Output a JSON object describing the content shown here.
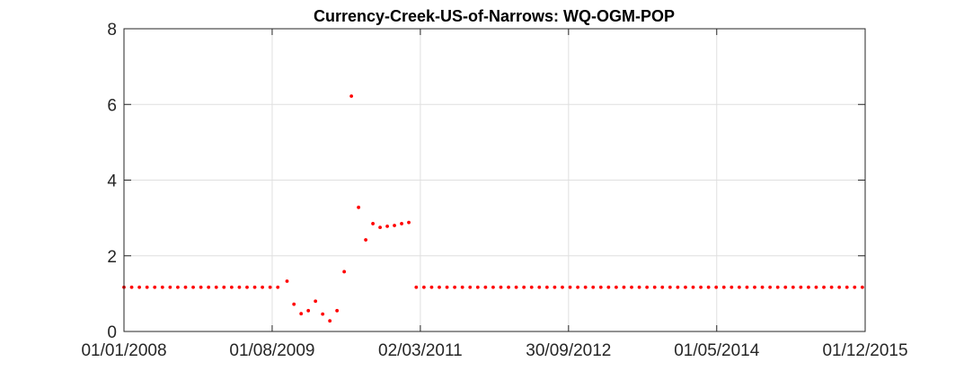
{
  "chart_data": {
    "type": "scatter",
    "title": "Currency-Creek-US-of-Narrows: WQ-OGM-POP",
    "xlabel": "",
    "ylabel": "",
    "xlim": [
      "2008-01-01",
      "2015-12-01"
    ],
    "ylim": [
      0,
      8
    ],
    "x_ticks": [
      "2008-01-01",
      "2009-08-01",
      "2011-03-02",
      "2012-09-30",
      "2014-05-01",
      "2015-12-01"
    ],
    "x_tick_labels": [
      "01/01/2008",
      "01/08/2009",
      "02/03/2011",
      "30/09/2012",
      "01/05/2014",
      "01/12/2015"
    ],
    "y_ticks": [
      0,
      2,
      4,
      6,
      8
    ],
    "y_tick_labels": [
      "0",
      "2",
      "4",
      "6",
      "8"
    ],
    "grid": true,
    "legend": "none",
    "series": [
      {
        "color": "#ff0000",
        "marker": "dot",
        "baseline_early": {
          "start": "2008-01-01",
          "end": "2009-08-24",
          "step_days": 30,
          "value": 1.17
        },
        "measured": [
          {
            "x": "2009-09-28",
            "y": 1.33
          },
          {
            "x": "2009-10-25",
            "y": 0.72
          },
          {
            "x": "2009-11-22",
            "y": 0.47
          },
          {
            "x": "2009-12-20",
            "y": 0.55
          },
          {
            "x": "2010-01-17",
            "y": 0.8
          },
          {
            "x": "2010-02-14",
            "y": 0.46
          },
          {
            "x": "2010-03-14",
            "y": 0.28
          },
          {
            "x": "2010-04-11",
            "y": 0.55
          },
          {
            "x": "2010-05-09",
            "y": 1.58
          },
          {
            "x": "2010-06-06",
            "y": 6.22
          },
          {
            "x": "2010-07-04",
            "y": 3.28
          },
          {
            "x": "2010-08-01",
            "y": 2.42
          },
          {
            "x": "2010-08-29",
            "y": 2.85
          },
          {
            "x": "2010-09-26",
            "y": 2.75
          },
          {
            "x": "2010-10-24",
            "y": 2.78
          },
          {
            "x": "2010-11-21",
            "y": 2.8
          },
          {
            "x": "2010-12-19",
            "y": 2.85
          },
          {
            "x": "2011-01-16",
            "y": 2.88
          }
        ],
        "baseline_late": {
          "start": "2011-02-14",
          "end": "2015-12-01",
          "step_days": 30,
          "value": 1.17
        }
      }
    ]
  }
}
